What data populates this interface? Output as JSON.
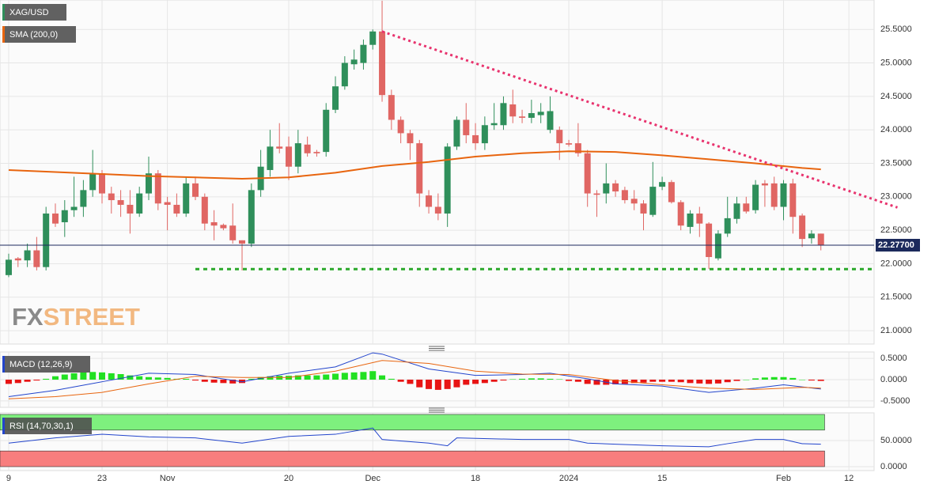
{
  "chart_data": {
    "type": "candlestick",
    "xlim": [
      -0.93,
      92.7
    ],
    "xticks": [
      {
        "value": 0,
        "label": "9"
      },
      {
        "value": 10,
        "label": "23"
      },
      {
        "value": 17,
        "label": "Nov"
      },
      {
        "value": 30,
        "label": "20"
      },
      {
        "value": 39,
        "label": "Dec"
      },
      {
        "value": 50,
        "label": "18"
      },
      {
        "value": 60,
        "label": "2024"
      },
      {
        "value": 70,
        "label": "15"
      },
      {
        "value": 83,
        "label": "Feb"
      },
      {
        "value": 90,
        "label": "12"
      }
    ],
    "grid": true,
    "ylim": [
      20.8,
      25.94
    ],
    "yticks": [
      {
        "value": 25.5,
        "label": "25.5000"
      },
      {
        "value": 25.0,
        "label": "25.0000"
      },
      {
        "value": 24.5,
        "label": "24.5000"
      },
      {
        "value": 24.0,
        "label": "24.0000"
      },
      {
        "value": 23.5,
        "label": "23.5000"
      },
      {
        "value": 23.0,
        "label": "23.0000"
      },
      {
        "value": 22.5,
        "label": "22.5000"
      },
      {
        "value": 22.0,
        "label": "22.0000"
      },
      {
        "value": 21.5,
        "label": "21.5000"
      },
      {
        "value": 21.0,
        "label": "21.0000"
      }
    ],
    "watermark": [
      "FX",
      "STREET"
    ],
    "series": [
      {
        "name": "XAG/USD",
        "color": "#2f8f5b",
        "down_color": "#e06663",
        "open": [
          21.83,
          22.08,
          22.05,
          22.2,
          21.95,
          22.75,
          22.62,
          22.8,
          22.85,
          23.1,
          23.35,
          23.05,
          22.95,
          22.88,
          22.75,
          23.05,
          23.35,
          22.92,
          22.88,
          22.75,
          23.2,
          23.0,
          22.62,
          22.58,
          22.57,
          22.35,
          22.3,
          23.1,
          23.4,
          23.75,
          23.75,
          23.45,
          23.78,
          23.67,
          23.67,
          24.3,
          24.65,
          24.98,
          25.0,
          25.27,
          25.47,
          24.52,
          24.15,
          23.95,
          23.8,
          23.02,
          22.85,
          22.75,
          23.75,
          24.15,
          23.92,
          23.8,
          24.07,
          24.07,
          24.38,
          24.2,
          24.18,
          24.22,
          24.0,
          24.0,
          23.8,
          23.8,
          23.65,
          23.05,
          23.05,
          23.2,
          23.1,
          22.97,
          22.9,
          22.73,
          23.15,
          23.22,
          22.92,
          22.55,
          22.75,
          22.6,
          22.08,
          22.45,
          22.67,
          22.9,
          22.8,
          23.2,
          23.2,
          22.85,
          23.2,
          22.72,
          22.38,
          22.45
        ],
        "high": [
          22.15,
          22.1,
          22.3,
          22.4,
          22.85,
          22.9,
          22.95,
          23.3,
          23.25,
          23.7,
          23.4,
          23.15,
          23.1,
          23.1,
          23.15,
          23.6,
          23.4,
          23.0,
          23.05,
          23.3,
          23.3,
          23.05,
          22.8,
          22.6,
          22.9,
          22.35,
          23.2,
          23.7,
          24.0,
          24.1,
          23.9,
          24.0,
          23.9,
          23.7,
          24.4,
          24.8,
          25.1,
          25.2,
          25.35,
          25.5,
          25.93,
          24.6,
          24.2,
          24.0,
          23.85,
          23.1,
          23.05,
          23.8,
          24.2,
          24.4,
          24.1,
          24.2,
          24.4,
          24.5,
          24.6,
          24.3,
          24.45,
          24.4,
          24.5,
          24.05,
          23.85,
          24.1,
          23.7,
          23.1,
          23.5,
          23.25,
          23.15,
          23.1,
          22.95,
          23.52,
          23.3,
          23.25,
          22.95,
          22.8,
          22.85,
          22.62,
          22.5,
          23.0,
          23.0,
          23.0,
          23.25,
          23.25,
          23.3,
          23.25,
          23.27,
          22.75,
          22.5,
          22.45
        ],
        "low": [
          21.8,
          21.95,
          21.95,
          21.9,
          21.9,
          22.55,
          22.4,
          22.7,
          22.7,
          23.0,
          22.9,
          22.75,
          22.7,
          22.45,
          22.7,
          22.95,
          22.8,
          22.5,
          22.7,
          22.7,
          22.95,
          22.5,
          22.35,
          22.5,
          22.3,
          21.9,
          22.25,
          23.0,
          23.3,
          23.65,
          23.25,
          23.35,
          23.6,
          23.6,
          23.6,
          24.25,
          24.6,
          24.9,
          24.9,
          25.2,
          24.42,
          24.0,
          23.8,
          23.55,
          22.85,
          22.75,
          22.65,
          22.55,
          23.7,
          23.8,
          23.7,
          23.7,
          24.0,
          24.0,
          24.1,
          24.1,
          24.1,
          24.1,
          23.95,
          23.55,
          23.75,
          23.6,
          22.85,
          22.7,
          22.9,
          23.0,
          22.9,
          22.8,
          22.5,
          22.7,
          23.1,
          22.9,
          22.5,
          22.45,
          22.4,
          21.92,
          22.05,
          22.4,
          22.6,
          22.75,
          22.75,
          22.85,
          22.8,
          22.65,
          22.45,
          22.25,
          22.3,
          22.2
        ],
        "close": [
          22.06,
          22.05,
          22.2,
          21.95,
          22.75,
          22.6,
          22.8,
          22.85,
          23.1,
          23.35,
          23.05,
          22.95,
          22.88,
          22.75,
          23.05,
          23.35,
          22.9,
          22.88,
          22.75,
          23.2,
          23.0,
          22.6,
          22.57,
          22.53,
          22.35,
          22.3,
          23.1,
          23.45,
          23.75,
          23.72,
          23.45,
          23.8,
          23.65,
          23.65,
          24.3,
          24.65,
          25.0,
          25.05,
          25.27,
          25.47,
          24.52,
          24.15,
          23.95,
          23.8,
          23.05,
          22.85,
          22.75,
          23.75,
          24.15,
          23.92,
          23.8,
          24.07,
          24.1,
          24.4,
          24.2,
          24.18,
          24.25,
          24.27,
          24.28,
          23.8,
          23.78,
          23.65,
          23.05,
          23.03,
          23.2,
          23.08,
          22.95,
          22.9,
          22.75,
          23.15,
          23.22,
          22.92,
          22.57,
          22.75,
          22.6,
          22.1,
          22.45,
          22.68,
          22.9,
          22.78,
          23.18,
          23.17,
          22.85,
          23.2,
          22.7,
          22.37,
          22.45,
          22.28
        ]
      },
      {
        "name": "SMA (200,0)",
        "type": "line",
        "color": "#e8650f",
        "x": [
          0,
          5,
          10,
          15,
          20,
          25,
          30,
          35,
          40,
          45,
          50,
          55,
          60,
          65,
          70,
          75,
          80,
          85,
          87
        ],
        "values": [
          23.4,
          23.37,
          23.34,
          23.31,
          23.29,
          23.27,
          23.29,
          23.36,
          23.46,
          23.52,
          23.6,
          23.65,
          23.68,
          23.67,
          23.62,
          23.56,
          23.5,
          23.43,
          23.41
        ]
      }
    ],
    "lines": [
      {
        "x": [
          40,
          95.2
        ],
        "values": [
          25.47,
          22.84
        ],
        "color": "#e8336e",
        "dash": "3 4"
      },
      {
        "x": [
          20,
          92.7
        ],
        "values": [
          21.92,
          21.92
        ],
        "color": "#2aa82a",
        "dash": "5 5"
      }
    ],
    "last_price": {
      "value": 22.277,
      "label": "22.27700",
      "color": "#1c2a5c"
    },
    "macd": {
      "title": "MACD (12,26,9)",
      "title_color": "#2244cc",
      "ylim": [
        -0.65,
        0.65
      ],
      "yticks": [
        {
          "value": 0.5,
          "label": "0.5000"
        },
        {
          "value": 0.0,
          "label": "0.0000"
        },
        {
          "value": -0.5,
          "label": "-0.5000"
        }
      ],
      "histogram": {
        "color": "#22e022",
        "down_color": "#e81414",
        "values": [
          -0.1,
          -0.08,
          -0.05,
          -0.02,
          0.02,
          0.08,
          0.12,
          0.15,
          0.17,
          0.18,
          0.17,
          0.15,
          0.13,
          0.1,
          0.08,
          0.06,
          0.05,
          0.04,
          0.02,
          0.02,
          -0.02,
          -0.05,
          -0.07,
          -0.08,
          -0.09,
          -0.08,
          0.02,
          0.06,
          0.08,
          0.09,
          0.09,
          0.1,
          0.1,
          0.1,
          0.12,
          0.14,
          0.16,
          0.17,
          0.18,
          0.2,
          0.1,
          0.02,
          -0.05,
          -0.1,
          -0.18,
          -0.22,
          -0.24,
          -0.22,
          -0.18,
          -0.12,
          -0.1,
          -0.08,
          -0.05,
          -0.02,
          0.01,
          0.02,
          0.03,
          0.03,
          0.02,
          0.01,
          -0.03,
          -0.05,
          -0.1,
          -0.12,
          -0.12,
          -0.11,
          -0.1,
          -0.08,
          -0.07,
          -0.05,
          -0.05,
          -0.05,
          -0.06,
          -0.08,
          -0.09,
          -0.1,
          -0.09,
          -0.06,
          -0.03,
          0.0,
          0.03,
          0.05,
          0.06,
          0.06,
          0.04,
          0.0,
          -0.02,
          -0.03
        ]
      },
      "series": [
        {
          "color": "#2244cc",
          "x": [
            0,
            5,
            10,
            15,
            20,
            25,
            30,
            35,
            39,
            40,
            45,
            50,
            55,
            58,
            62,
            65,
            70,
            75,
            80,
            83,
            87
          ],
          "values": [
            -0.4,
            -0.25,
            -0.05,
            0.15,
            0.12,
            -0.05,
            0.15,
            0.3,
            0.63,
            0.6,
            0.25,
            0.1,
            0.12,
            0.15,
            0.02,
            -0.1,
            -0.15,
            -0.3,
            -0.2,
            -0.12,
            -0.22
          ]
        },
        {
          "color": "#e8650f",
          "x": [
            0,
            5,
            10,
            15,
            20,
            25,
            30,
            35,
            40,
            45,
            50,
            55,
            60,
            65,
            70,
            75,
            80,
            85,
            87
          ],
          "values": [
            -0.45,
            -0.4,
            -0.3,
            -0.1,
            0.08,
            0.05,
            0.05,
            0.2,
            0.45,
            0.38,
            0.2,
            0.13,
            0.12,
            -0.02,
            -0.12,
            -0.2,
            -0.23,
            -0.18,
            -0.2
          ]
        }
      ]
    },
    "rsi": {
      "title": "RSI (14,70,30,1)",
      "title_color": "#2244cc",
      "ylim": [
        -7.6,
        103
      ],
      "yticks": [
        {
          "value": 50,
          "label": "50.0000"
        },
        {
          "value": 0,
          "label": "0.0000"
        }
      ],
      "bands": [
        {
          "x": [
            -0.93,
            87.4
          ],
          "range": [
            70,
            100
          ],
          "color": "#7ef07e"
        },
        {
          "x": [
            -0.93,
            87.4
          ],
          "range": [
            0,
            30
          ],
          "color": "#f87e7e"
        }
      ],
      "series": [
        {
          "color": "#2244cc",
          "x": [
            0,
            5,
            10,
            15,
            20,
            25,
            30,
            35,
            39,
            40,
            45,
            47,
            48,
            55,
            60,
            62,
            65,
            70,
            75,
            77,
            80,
            83,
            85,
            87
          ],
          "values": [
            45,
            55,
            62,
            57,
            55,
            45,
            58,
            62,
            74,
            52,
            45,
            40,
            55,
            52,
            52,
            45,
            43,
            40,
            38,
            44,
            52,
            52,
            44,
            43
          ]
        }
      ]
    }
  }
}
